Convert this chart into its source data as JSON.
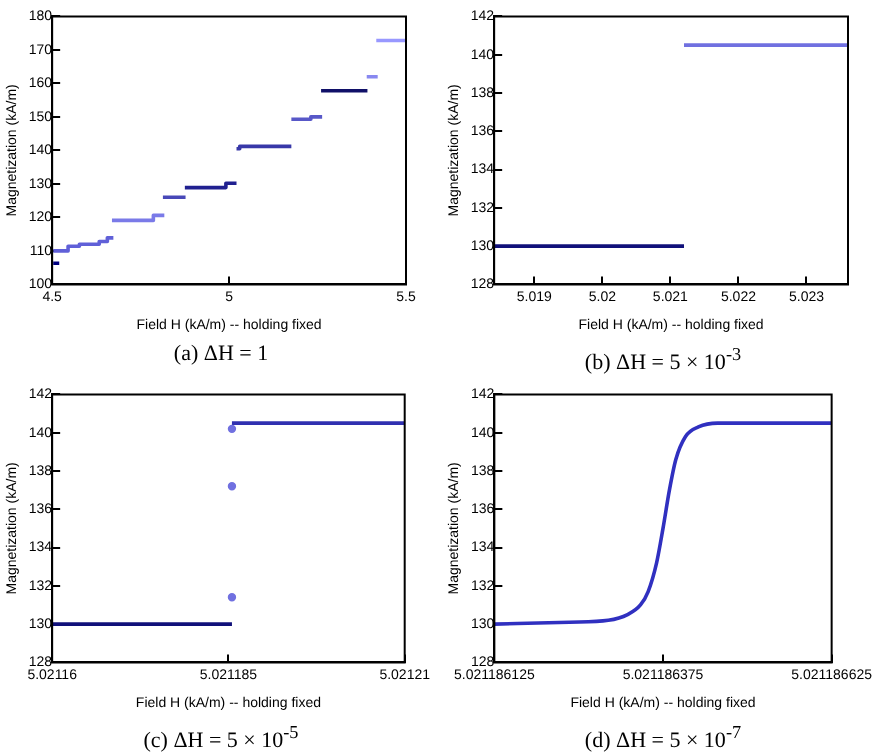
{
  "chart_data": [
    {
      "type": "line",
      "title": "(a) ΔH = 1",
      "xlabel": "Field H (kA/m) -- holding fixed",
      "ylabel": "Magnetization (kA/m)",
      "xlim": [
        4.5,
        5.5
      ],
      "xticks": [
        4.5,
        5,
        5.5
      ],
      "ylim": [
        100,
        180
      ],
      "yticks": [
        100,
        110,
        120,
        130,
        140,
        150,
        160,
        170,
        180
      ],
      "marker": "none",
      "line_style": "solid",
      "series": [
        {
          "color": "#000080",
          "x": [
            4.503,
            4.52
          ],
          "values": [
            106.3,
            106.3
          ]
        },
        {
          "color": "#6060d8",
          "x": [
            4.503,
            4.545,
            4.545,
            4.577,
            4.577,
            4.633,
            4.633,
            4.656,
            4.656,
            4.673
          ],
          "values": [
            110,
            110,
            111.4,
            111.4,
            112,
            112,
            112.8,
            112.8,
            113.9,
            113.9
          ]
        },
        {
          "color": "#7a7ae8",
          "x": [
            4.669,
            4.786,
            4.786,
            4.817
          ],
          "values": [
            119.1,
            119.1,
            120.6,
            120.6
          ]
        },
        {
          "color": "#4848b8",
          "x": [
            4.813,
            4.877
          ],
          "values": [
            126,
            126
          ]
        },
        {
          "color": "#202090",
          "x": [
            4.875,
            4.991,
            4.991,
            5.021
          ],
          "values": [
            128.9,
            128.9,
            130.2,
            130.2
          ]
        },
        {
          "color": "#3838a8",
          "x": [
            5.021,
            5.03,
            5.03,
            5.176
          ],
          "values": [
            140.5,
            140.5,
            141.2,
            141.2
          ]
        },
        {
          "color": "#5858c8",
          "x": [
            5.176,
            5.231,
            5.231,
            5.263
          ],
          "values": [
            149.3,
            149.3,
            150,
            150
          ]
        },
        {
          "color": "#101068",
          "x": [
            5.26,
            5.391
          ],
          "values": [
            157.8,
            157.8
          ]
        },
        {
          "color": "#8888f0",
          "x": [
            5.389,
            5.42
          ],
          "values": [
            162,
            162
          ]
        },
        {
          "color": "#9898ff",
          "x": [
            5.416,
            5.5
          ],
          "values": [
            172.8,
            172.8
          ]
        }
      ]
    },
    {
      "type": "line",
      "title": "(b) ΔH = 5 × 10$^{-3}$",
      "xlabel": "Field H (kA/m) -- holding fixed",
      "ylabel": "Magnetization (kA/m)",
      "xlim": [
        5.01841,
        5.02361
      ],
      "xticks": [
        5.019,
        5.02,
        5.021,
        5.022,
        5.023
      ],
      "ylim": [
        128,
        142
      ],
      "yticks": [
        128,
        130,
        132,
        134,
        136,
        138,
        140,
        142
      ],
      "marker": "none",
      "line_style": "solid",
      "series": [
        {
          "color": "#10107a",
          "x": [
            5.01841,
            5.0212
          ],
          "values": [
            130,
            130
          ]
        },
        {
          "color": "#7070e0",
          "x": [
            5.0212,
            5.02361
          ],
          "values": [
            140.5,
            140.5
          ]
        }
      ]
    },
    {
      "type": "line",
      "title": "(c) ΔH = 5 × 10$^{-5}$",
      "xlabel": "Field H (kA/m) -- holding fixed",
      "ylabel": "Magnetization (kA/m)",
      "xlim": [
        5.02116,
        5.02121
      ],
      "xticks": [
        5.02116,
        5.021185,
        5.02121
      ],
      "ylim": [
        128,
        142
      ],
      "yticks": [
        128,
        130,
        132,
        134,
        136,
        138,
        140,
        142
      ],
      "marker": "none",
      "line_style": "solid",
      "series": [
        {
          "color": "#10107a",
          "x": [
            5.02116,
            5.0211855
          ],
          "values": [
            130,
            130
          ]
        },
        {
          "color": "#3030b0",
          "x": [
            5.0211855,
            5.02121
          ],
          "values": [
            140.5,
            140.5
          ]
        },
        {
          "type": "scatter",
          "marker": "circle",
          "color": "#7070e0",
          "x": [
            5.0211855,
            5.0211855,
            5.0211855
          ],
          "values": [
            131.4,
            137.2,
            140.2
          ]
        }
      ]
    },
    {
      "type": "line",
      "title": "(d) ΔH = 5 × 10$^{-7}$",
      "xlabel": "Field H (kA/m) -- holding fixed",
      "ylabel": "Magnetization (kA/m)",
      "xlim": [
        5.021186125,
        5.021186625
      ],
      "xticks": [
        5.021186125,
        5.021186375,
        5.021186625
      ],
      "ylim": [
        128,
        142
      ],
      "yticks": [
        128,
        130,
        132,
        134,
        136,
        138,
        140,
        142
      ],
      "marker": "none",
      "line_style": "solid",
      "series": [
        {
          "color": "#3030c0",
          "x": [
            5.021186125,
            5.0211862366,
            5.0211862939,
            5.0211863225,
            5.0211863416,
            5.021186353,
            5.0211863655,
            5.021186375,
            5.0211863845,
            5.021186394,
            5.0211864084,
            5.0211864275,
            5.021186456,
            5.021186625
          ],
          "values": [
            130,
            130.1,
            130.2,
            130.5,
            131,
            131.7,
            133.2,
            135,
            137,
            138.6,
            139.8,
            140.3,
            140.5,
            140.5
          ]
        }
      ]
    }
  ]
}
